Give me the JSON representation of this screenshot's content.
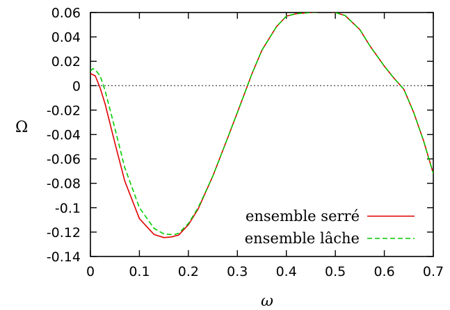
{
  "chart_data": {
    "type": "line",
    "xlabel": "ω",
    "ylabel": "Ω",
    "xlim": [
      0,
      0.7
    ],
    "ylim": [
      -0.14,
      0.06
    ],
    "xticks": [
      "0",
      "0.1",
      "0.2",
      "0.3",
      "0.4",
      "0.5",
      "0.6",
      "0.7"
    ],
    "yticks": [
      "0.06",
      "0.04",
      "0.02",
      "0",
      "-0.02",
      "-0.04",
      "-0.06",
      "-0.08",
      "-0.1",
      "-0.12",
      "-0.14"
    ],
    "grid": false,
    "zero_line": true,
    "legend_position": "bottom-right",
    "colors": {
      "serre": "#e00000",
      "lache": "#00cc00",
      "zero_line": "#555555"
    },
    "series": [
      {
        "name": "ensemble serré",
        "style": "solid",
        "x": [
          0,
          0.01,
          0.02,
          0.03,
          0.05,
          0.07,
          0.1,
          0.13,
          0.15,
          0.165,
          0.18,
          0.2,
          0.22,
          0.25,
          0.28,
          0.3,
          0.33,
          0.35,
          0.38,
          0.4,
          0.42,
          0.45,
          0.47,
          0.49,
          0.5,
          0.52,
          0.55,
          0.57,
          0.6,
          0.62,
          0.64,
          0.66,
          0.68,
          0.7
        ],
        "values": [
          0.01,
          0.008,
          -0.002,
          -0.015,
          -0.047,
          -0.078,
          -0.109,
          -0.122,
          -0.1245,
          -0.124,
          -0.1225,
          -0.114,
          -0.101,
          -0.074,
          -0.043,
          -0.022,
          0.01,
          0.029,
          0.0485,
          0.057,
          0.059,
          0.06,
          0.0605,
          0.0605,
          0.06,
          0.0575,
          0.046,
          0.033,
          0.016,
          0.006,
          -0.003,
          -0.022,
          -0.045,
          -0.072
        ]
      },
      {
        "name": "ensemble lâche",
        "style": "dashed",
        "x": [
          0,
          0.005,
          0.01,
          0.02,
          0.03,
          0.05,
          0.07,
          0.1,
          0.13,
          0.15,
          0.17,
          0.18,
          0.2,
          0.22,
          0.25,
          0.28,
          0.3,
          0.33,
          0.35,
          0.38,
          0.4,
          0.42,
          0.45,
          0.47,
          0.49,
          0.5,
          0.52,
          0.55,
          0.57,
          0.6,
          0.62,
          0.64,
          0.66,
          0.68,
          0.7
        ],
        "values": [
          0.012,
          0.014,
          0.013,
          0.008,
          -0.004,
          -0.035,
          -0.067,
          -0.1,
          -0.117,
          -0.1215,
          -0.1222,
          -0.121,
          -0.113,
          -0.1,
          -0.074,
          -0.043,
          -0.022,
          0.01,
          0.029,
          0.0485,
          0.057,
          0.059,
          0.06,
          0.0605,
          0.0605,
          0.06,
          0.0575,
          0.046,
          0.033,
          0.016,
          0.006,
          -0.003,
          -0.022,
          -0.045,
          -0.072
        ]
      }
    ]
  }
}
